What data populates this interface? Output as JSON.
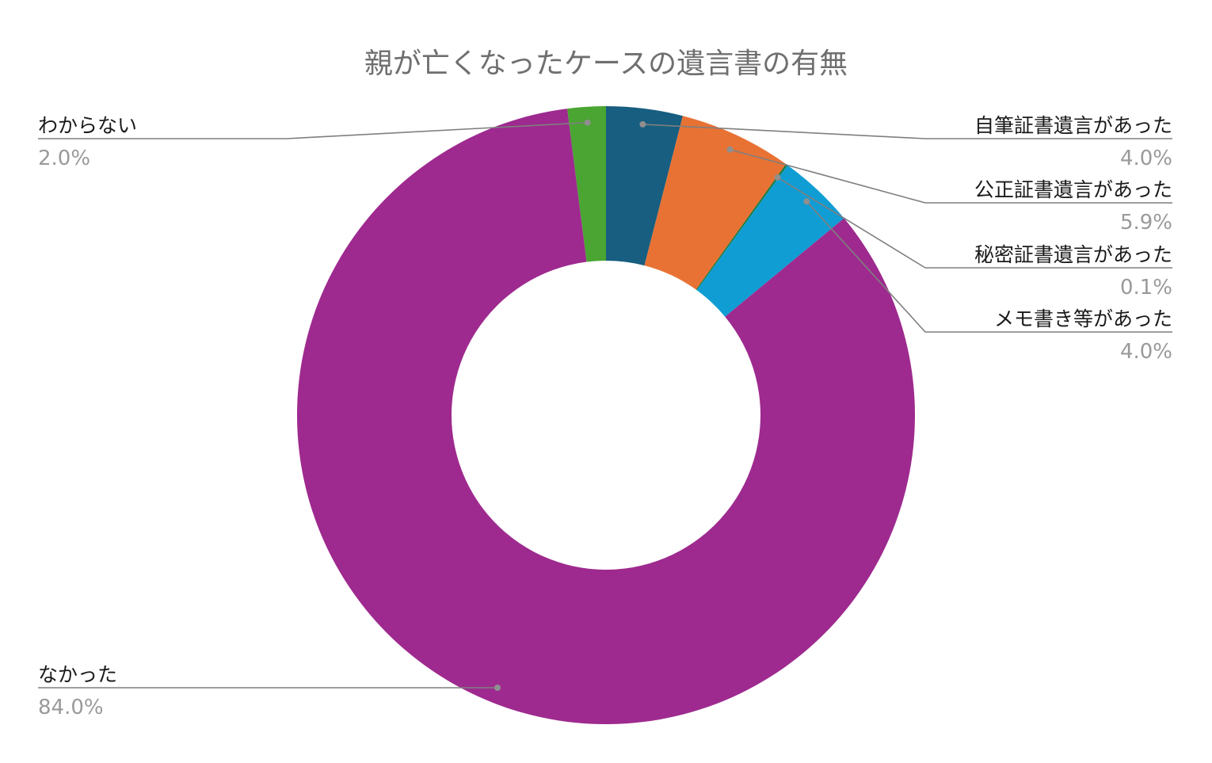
{
  "chart_data": {
    "type": "pie",
    "title": "親が亡くなったケースの遺言書の有無",
    "categories": [
      "自筆証書遺言があった",
      "公正証書遺言があった",
      "秘密証書遺言があった",
      "メモ書き等があった",
      "なかった",
      "わからない"
    ],
    "values": [
      4.0,
      5.9,
      0.1,
      4.0,
      84.0,
      2.0
    ],
    "value_labels": [
      "4.0%",
      "5.9%",
      "0.1%",
      "4.0%",
      "84.0%",
      "2.0%"
    ],
    "colors": [
      "#175e80",
      "#e87234",
      "#1e7a3c",
      "#109dd4",
      "#9e2a8f",
      "#4aa532"
    ],
    "donut": true,
    "legend": "none"
  }
}
